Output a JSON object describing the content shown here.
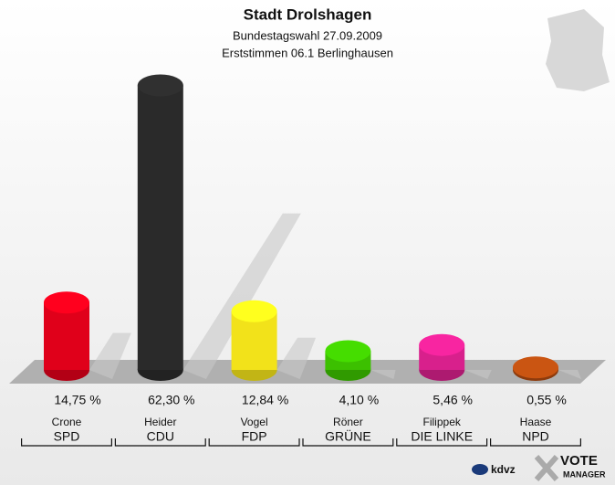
{
  "chart_data": {
    "type": "bar",
    "title": "Stadt Drolshagen",
    "subtitle": "Bundestagswahl 27.09.2009",
    "subtitle2": "Erststimmen 06.1 Berlinghausen",
    "categories": [
      "Crone",
      "Heider",
      "Vogel",
      "Röner",
      "Filippek",
      "Haase"
    ],
    "parties": [
      "SPD",
      "CDU",
      "FDP",
      "GRÜNE",
      "DIE LINKE",
      "NPD"
    ],
    "values": [
      14.75,
      62.3,
      12.84,
      4.1,
      5.46,
      0.55
    ],
    "value_labels": [
      "14,75 %",
      "62,30 %",
      "12,84 %",
      "4,10 %",
      "5,46 %",
      "0,55 %"
    ],
    "colors": [
      "#e0001a",
      "#2a2a2a",
      "#f2e21a",
      "#3cc000",
      "#d8208c",
      "#b04a10"
    ],
    "logo": [
      "kdvz",
      "VOTE",
      "MANAGER"
    ]
  }
}
